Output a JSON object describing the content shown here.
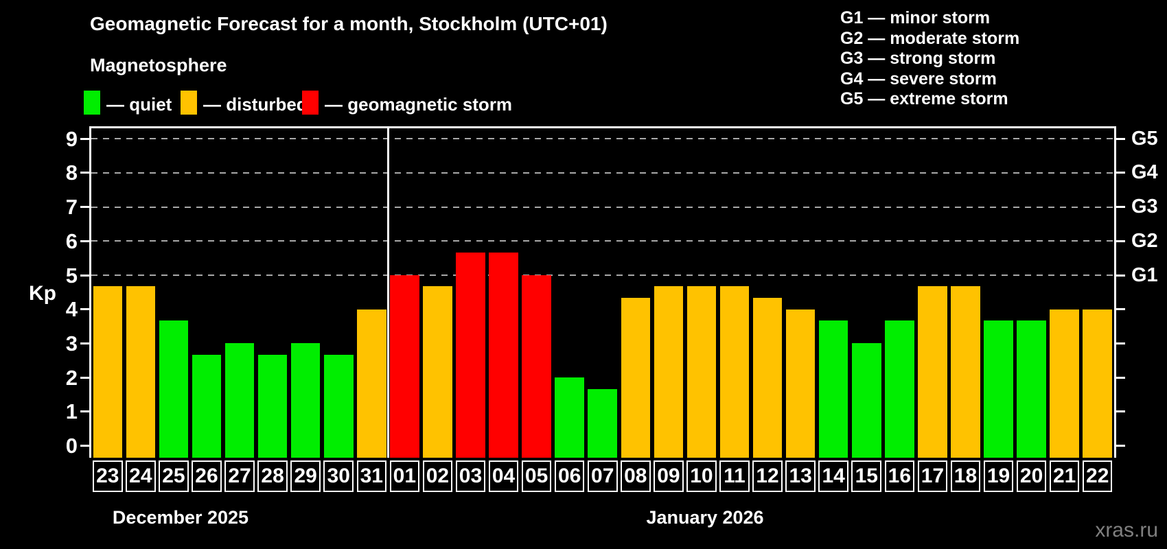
{
  "header": {
    "title": "Geomagnetic Forecast for a month, Stockholm (UTC+01)",
    "subtitle": "Magnetosphere"
  },
  "legend": {
    "items": [
      {
        "key": "quiet",
        "label": "— quiet",
        "color": "#00ee00"
      },
      {
        "key": "disturbed",
        "label": "— disturbed",
        "color": "#ffc200"
      },
      {
        "key": "storm",
        "label": "— geomagnetic storm",
        "color": "#ff0000"
      }
    ]
  },
  "storm_scale": {
    "lines": [
      "G1 — minor storm",
      "G2 — moderate storm",
      "G3 — strong storm",
      "G4 — severe storm",
      "G5 — extreme storm"
    ]
  },
  "watermark": "xras.ru",
  "chart_data": {
    "type": "bar",
    "title": "Geomagnetic Forecast for a month, Stockholm (UTC+01)",
    "ylabel": "Kp",
    "ylim": [
      0,
      9
    ],
    "y_ticks": [
      0,
      1,
      2,
      3,
      4,
      5,
      6,
      7,
      8,
      9
    ],
    "gridlines_at_kp": [
      5,
      6,
      7,
      8,
      9
    ],
    "grid_style": "dashed gray horizontal lines only at Kp 5–9",
    "legend_position": "top-left",
    "right_axis_labels": [
      {
        "label": "G1",
        "kp": 5
      },
      {
        "label": "G2",
        "kp": 6
      },
      {
        "label": "G3",
        "kp": 7
      },
      {
        "label": "G4",
        "kp": 8
      },
      {
        "label": "G5",
        "kp": 9
      }
    ],
    "months": [
      {
        "label": "December 2025",
        "days": 9
      },
      {
        "label": "January 2026",
        "days": 22
      }
    ],
    "categories": [
      "23",
      "24",
      "25",
      "26",
      "27",
      "28",
      "29",
      "30",
      "31",
      "01",
      "02",
      "03",
      "04",
      "05",
      "06",
      "07",
      "08",
      "09",
      "10",
      "11",
      "12",
      "13",
      "14",
      "15",
      "16",
      "17",
      "18",
      "19",
      "20",
      "21",
      "22"
    ],
    "series": [
      {
        "name": "Kp forecast",
        "values": [
          4.67,
          4.67,
          3.67,
          2.67,
          3.0,
          2.67,
          3.0,
          2.67,
          4.0,
          5.0,
          4.67,
          5.67,
          5.67,
          5.0,
          2.0,
          1.67,
          4.33,
          4.67,
          4.67,
          4.67,
          4.33,
          4.0,
          3.67,
          3.0,
          3.67,
          4.67,
          4.67,
          3.67,
          3.67,
          4.0,
          4.0
        ],
        "states": [
          "disturbed",
          "disturbed",
          "quiet",
          "quiet",
          "quiet",
          "quiet",
          "quiet",
          "quiet",
          "disturbed",
          "storm",
          "disturbed",
          "storm",
          "storm",
          "storm",
          "quiet",
          "quiet",
          "disturbed",
          "disturbed",
          "disturbed",
          "disturbed",
          "disturbed",
          "disturbed",
          "quiet",
          "quiet",
          "quiet",
          "disturbed",
          "disturbed",
          "quiet",
          "quiet",
          "disturbed",
          "disturbed"
        ]
      }
    ],
    "state_colors": {
      "quiet": "#00ee00",
      "disturbed": "#ffc200",
      "storm": "#ff0000"
    }
  }
}
